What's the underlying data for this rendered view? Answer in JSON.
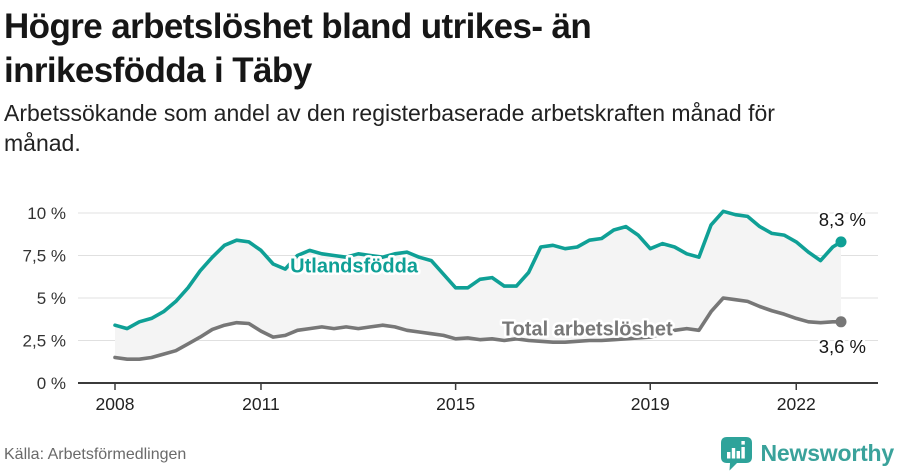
{
  "header": {
    "title_lines": [
      "Högre arbetslöshet bland utrikes- än",
      "inrikesfödda i Täby"
    ],
    "subtitle_lines": [
      "Arbetssökande som andel av den registerbaserade arbetskraften månad för",
      "månad."
    ]
  },
  "chart_data": {
    "type": "line",
    "x_unit": "decimal year (monthly series, sampled quarterly)",
    "x": [
      2008,
      2008.25,
      2008.5,
      2008.75,
      2009,
      2009.25,
      2009.5,
      2009.75,
      2010,
      2010.25,
      2010.5,
      2010.75,
      2011,
      2011.25,
      2011.5,
      2011.75,
      2012,
      2012.25,
      2012.5,
      2012.75,
      2013,
      2013.25,
      2013.5,
      2013.75,
      2014,
      2014.25,
      2014.5,
      2014.75,
      2015,
      2015.25,
      2015.5,
      2015.75,
      2016,
      2016.25,
      2016.5,
      2016.75,
      2017,
      2017.25,
      2017.5,
      2017.75,
      2018,
      2018.25,
      2018.5,
      2018.75,
      2019,
      2019.25,
      2019.5,
      2019.75,
      2020,
      2020.25,
      2020.5,
      2020.75,
      2021,
      2021.25,
      2021.5,
      2021.75,
      2022,
      2022.25,
      2022.5,
      2022.75,
      2022.92
    ],
    "series": [
      {
        "name": "Utlandsfödda",
        "color": "#0fa096",
        "end_label": "8,3 %",
        "end_value": 8.3,
        "values": [
          3.4,
          3.2,
          3.6,
          3.8,
          4.2,
          4.8,
          5.6,
          6.6,
          7.4,
          8.1,
          8.4,
          8.3,
          7.8,
          7.0,
          6.7,
          7.5,
          7.8,
          7.6,
          7.5,
          7.4,
          7.6,
          7.5,
          7.4,
          7.6,
          7.7,
          7.4,
          7.2,
          6.4,
          5.6,
          5.6,
          6.1,
          6.2,
          5.7,
          5.7,
          6.5,
          8.0,
          8.1,
          7.9,
          8.0,
          8.4,
          8.5,
          9.0,
          9.2,
          8.7,
          7.9,
          8.2,
          8.0,
          7.6,
          7.4,
          9.3,
          10.1,
          9.9,
          9.8,
          9.2,
          8.8,
          8.7,
          8.3,
          7.7,
          7.2,
          8.0,
          8.3
        ]
      },
      {
        "name": "Total arbetslöshet",
        "color": "#777777",
        "end_label": "3,6 %",
        "end_value": 3.6,
        "values": [
          1.5,
          1.4,
          1.4,
          1.5,
          1.7,
          1.9,
          2.3,
          2.7,
          3.15,
          3.4,
          3.55,
          3.5,
          3.05,
          2.7,
          2.8,
          3.1,
          3.2,
          3.3,
          3.2,
          3.3,
          3.2,
          3.3,
          3.4,
          3.3,
          3.1,
          3.0,
          2.9,
          2.8,
          2.6,
          2.65,
          2.55,
          2.6,
          2.5,
          2.6,
          2.5,
          2.45,
          2.4,
          2.4,
          2.45,
          2.5,
          2.5,
          2.55,
          2.6,
          2.65,
          2.7,
          2.9,
          3.1,
          3.2,
          3.1,
          4.2,
          5.0,
          4.9,
          4.8,
          4.5,
          4.25,
          4.05,
          3.8,
          3.6,
          3.55,
          3.6,
          3.6
        ]
      }
    ],
    "annotations": [
      {
        "text": "Utlandsfödda",
        "x": 2011.6,
        "y": 6.5,
        "series": 0
      },
      {
        "text": "Total arbetslöshet",
        "x": 2015.95,
        "y": 2.8,
        "series": 1
      }
    ],
    "y_ticks": [
      {
        "value": 0,
        "label": "0 %"
      },
      {
        "value": 2.5,
        "label": "2,5 %"
      },
      {
        "value": 5,
        "label": "5 %"
      },
      {
        "value": 7.5,
        "label": "7,5 %"
      },
      {
        "value": 10,
        "label": "10 %"
      }
    ],
    "x_ticks": [
      {
        "value": 2008,
        "label": "2008"
      },
      {
        "value": 2011,
        "label": "2011"
      },
      {
        "value": 2015,
        "label": "2015"
      },
      {
        "value": 2019,
        "label": "2019"
      },
      {
        "value": 2022,
        "label": "2022"
      }
    ],
    "ylim": [
      0,
      10.5
    ],
    "xlim": [
      2008,
      2023.6
    ],
    "grid": "horizontal",
    "fill_between_series": true,
    "legend": "inline-labels"
  },
  "footer": {
    "source": "Källa: Arbetsförmedlingen",
    "brand": "Newsworthy"
  },
  "colors": {
    "band": "#f4f4f4",
    "grid": "#e0e0e0",
    "axis": "#3b3b3b",
    "y_label": "#333333",
    "x_label": "#222222",
    "value_label": "#161616",
    "logo_teal": "#2ea39a"
  }
}
